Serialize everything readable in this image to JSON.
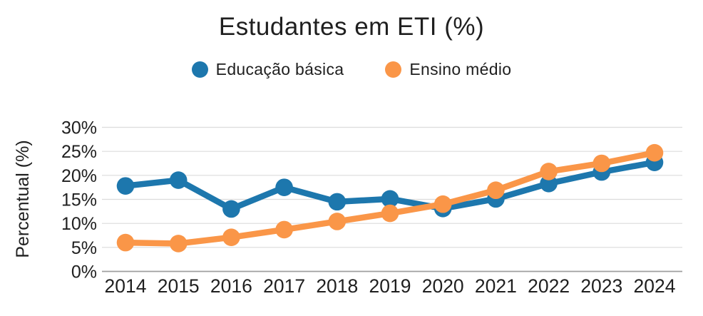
{
  "chart_data": {
    "type": "line",
    "title": "Estudantes em ETI (%)",
    "xlabel": "",
    "ylabel": "Percentual (%)",
    "categories": [
      "2014",
      "2015",
      "2016",
      "2017",
      "2018",
      "2019",
      "2020",
      "2021",
      "2022",
      "2023",
      "2024"
    ],
    "series": [
      {
        "name": "Educação básica",
        "color": "#1d77ad",
        "values": [
          17.8,
          19.0,
          13.0,
          17.5,
          14.5,
          15.1,
          13.1,
          15.1,
          18.3,
          20.7,
          22.7
        ]
      },
      {
        "name": "Ensino médio",
        "color": "#fa9648",
        "values": [
          6.0,
          5.8,
          7.1,
          8.7,
          10.4,
          12.1,
          14.0,
          16.9,
          20.8,
          22.5,
          24.7
        ]
      }
    ],
    "ylim": [
      0,
      30
    ],
    "y_ticks": [
      0,
      5,
      10,
      15,
      20,
      25,
      30
    ],
    "y_tick_suffix": "%",
    "grid": "horizontal",
    "legend_position": "top",
    "grid_color": "#dcdcdc",
    "axis_line_color": "#9f9f9f",
    "text_color": "#1f1f1f"
  }
}
